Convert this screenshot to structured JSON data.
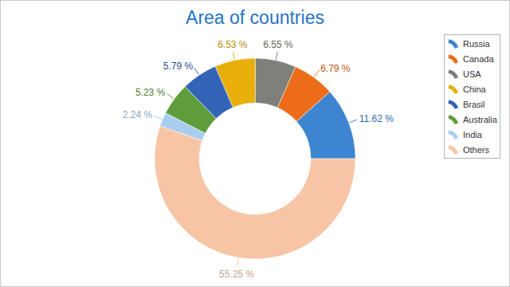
{
  "chart_data": {
    "type": "donut",
    "title": "Area of countries",
    "categories": [
      "Russia",
      "Canada",
      "USA",
      "China",
      "Brasil",
      "Australia",
      "India",
      "Others"
    ],
    "values": [
      11.62,
      6.79,
      6.55,
      6.53,
      5.79,
      5.23,
      2.24,
      55.25
    ],
    "value_labels": [
      "11.62 %",
      "6.79 %",
      "6.55 %",
      "6.53 %",
      "5.79 %",
      "5.23 %",
      "2.24 %",
      "55.25 %"
    ],
    "colors": [
      "#3d85d1",
      "#ec6c19",
      "#7f7f7c",
      "#e8af0a",
      "#3464b8",
      "#5f9c3c",
      "#a9cdef",
      "#f7c5a5"
    ],
    "data_labels": true,
    "legend": "top-right"
  }
}
